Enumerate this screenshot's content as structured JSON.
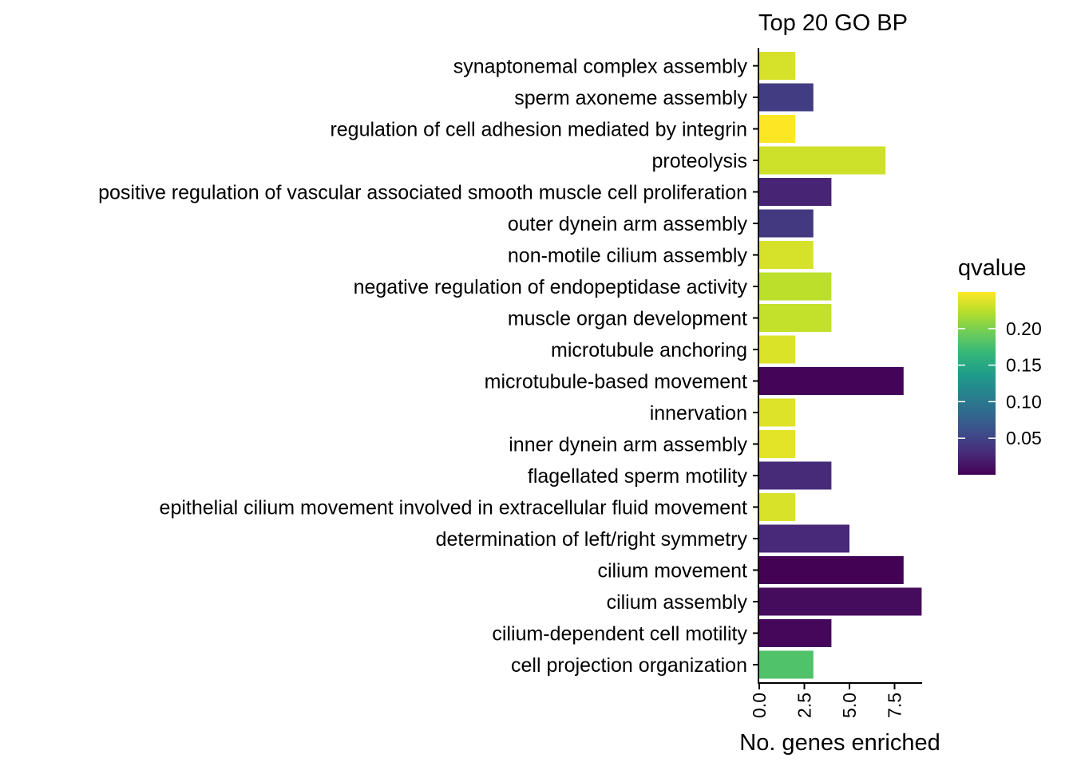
{
  "chart_data": {
    "type": "bar",
    "orientation": "horizontal",
    "title": "Top 20 GO BP",
    "xlabel": "No. genes enriched",
    "ylabel": "",
    "xlim": [
      0,
      9
    ],
    "x_ticks": [
      "0.0",
      "2.5",
      "5.0",
      "7.5"
    ],
    "categories": [
      "synaptonemal complex assembly",
      "sperm axoneme assembly",
      "regulation of cell adhesion mediated by integrin",
      "proteolysis",
      "positive regulation of vascular associated smooth muscle cell proliferation",
      "outer dynein arm assembly",
      "non-motile cilium assembly",
      "negative regulation of endopeptidase activity",
      "muscle organ development",
      "microtubule anchoring",
      "microtubule-based movement",
      "innervation",
      "inner dynein arm assembly",
      "flagellated sperm motility",
      "epithelial cilium movement involved in extracellular fluid movement",
      "determination of left/right symmetry",
      "cilium movement",
      "cilium assembly",
      "cilium-dependent cell motility",
      "cell projection organization"
    ],
    "values": [
      2,
      3,
      2,
      7,
      4,
      3,
      3,
      4,
      4,
      2,
      8,
      2,
      2,
      4,
      2,
      5,
      8,
      9,
      4,
      3
    ],
    "qvalues": [
      0.235,
      0.045,
      0.25,
      0.232,
      0.025,
      0.042,
      0.235,
      0.225,
      0.228,
      0.237,
      0.002,
      0.238,
      0.24,
      0.03,
      0.236,
      0.028,
      0.001,
      0.008,
      0.004,
      0.18
    ],
    "color_legend": {
      "title": "qvalue",
      "range": [
        0.0,
        0.25
      ],
      "ticks": [
        "0.05",
        "0.10",
        "0.15",
        "0.20"
      ],
      "colormap": "viridis",
      "colors": [
        "#440154",
        "#482878",
        "#3E4A89",
        "#31688E",
        "#26828E",
        "#1F9E89",
        "#35B779",
        "#6DCD59",
        "#B4DE2C",
        "#FDE725"
      ]
    },
    "grid": false,
    "legend_position": "right"
  }
}
